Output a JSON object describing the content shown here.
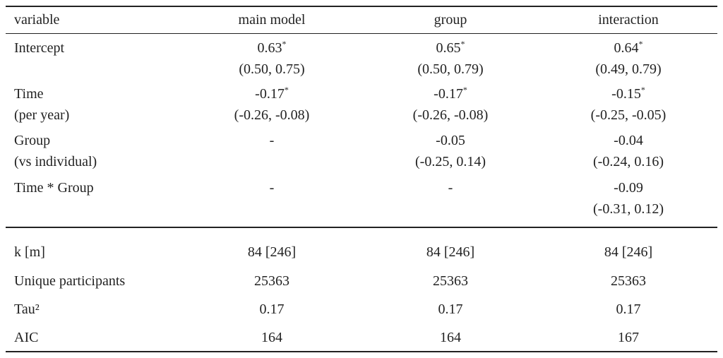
{
  "table": {
    "header": [
      "variable",
      "main model",
      "group",
      "interaction"
    ],
    "rows": [
      {
        "label": [
          "Intercept"
        ],
        "cells": [
          {
            "estimate": "0.63",
            "mark": "*",
            "ci": "(0.50, 0.75)"
          },
          {
            "estimate": "0.65",
            "mark": "*",
            "ci": "(0.50, 0.79)"
          },
          {
            "estimate": "0.64",
            "mark": "*",
            "ci": "(0.49, 0.79)"
          }
        ]
      },
      {
        "label": [
          "Time",
          "(per year)"
        ],
        "cells": [
          {
            "estimate": "-0.17",
            "mark": "*",
            "ci": "(-0.26, -0.08)"
          },
          {
            "estimate": "-0.17",
            "mark": "*",
            "ci": "(-0.26, -0.08)"
          },
          {
            "estimate": "-0.15",
            "mark": "*",
            "ci": "(-0.25, -0.05)"
          }
        ]
      },
      {
        "label": [
          "Group",
          "(vs individual)"
        ],
        "cells": [
          {
            "estimate": "-"
          },
          {
            "estimate": "-0.05",
            "ci": "(-0.25, 0.14)"
          },
          {
            "estimate": "-0.04",
            "ci": "(-0.24, 0.16)"
          }
        ]
      },
      {
        "label": [
          "Time * Group"
        ],
        "cells": [
          {
            "estimate": "-"
          },
          {
            "estimate": "-"
          },
          {
            "estimate": "-0.09",
            "ci": "(-0.31, 0.12)"
          }
        ]
      }
    ],
    "summary": [
      {
        "label": "k [m]",
        "cells": [
          "84 [246]",
          "84 [246]",
          "84 [246]"
        ]
      },
      {
        "label": "Unique participants",
        "cells": [
          "25363",
          "25363",
          "25363"
        ]
      },
      {
        "label": "Tau²",
        "cells": [
          "0.17",
          "0.17",
          "0.17"
        ]
      },
      {
        "label": "AIC",
        "cells": [
          "164",
          "164",
          "167"
        ]
      }
    ]
  }
}
